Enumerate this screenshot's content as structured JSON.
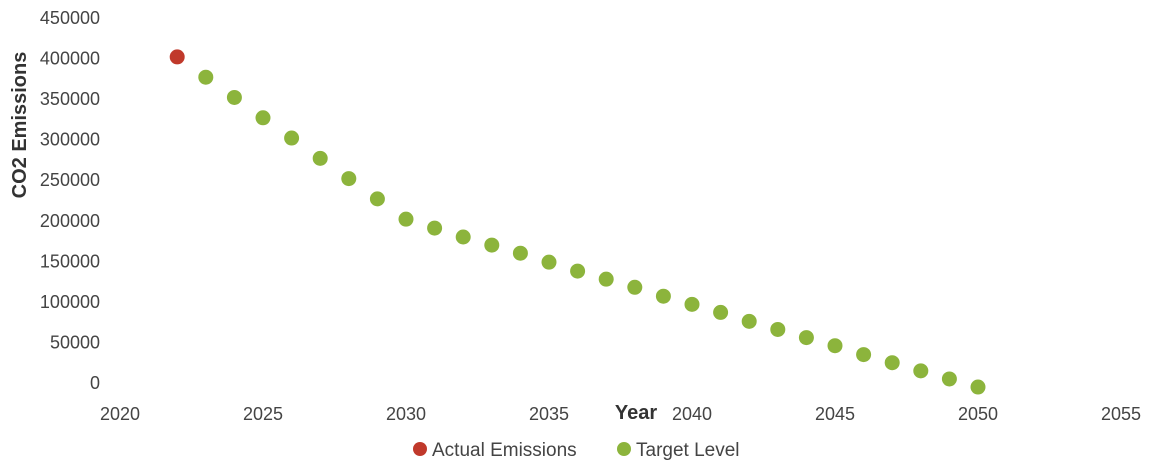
{
  "chart_data": {
    "type": "scatter",
    "title": "",
    "xlabel": "Year",
    "ylabel": "CO2 Emissions",
    "xlim": [
      2020,
      2055
    ],
    "ylim": [
      0,
      450000
    ],
    "x_ticks": [
      "2020",
      "2025",
      "2030",
      "2035",
      "2040",
      "2045",
      "2050",
      "2055"
    ],
    "y_ticks": [
      "0",
      "50000",
      "100000",
      "150000",
      "200000",
      "250000",
      "300000",
      "350000",
      "400000",
      "450000"
    ],
    "grid": false,
    "legend_position": "bottom",
    "series": [
      {
        "name": "Actual Emissions",
        "color": "#c0392b",
        "points": [
          {
            "x": 2022,
            "y": 402000
          }
        ]
      },
      {
        "name": "Target Level",
        "color": "#8cb43c",
        "points": [
          {
            "x": 2023,
            "y": 377000
          },
          {
            "x": 2024,
            "y": 352000
          },
          {
            "x": 2025,
            "y": 327000
          },
          {
            "x": 2026,
            "y": 302000
          },
          {
            "x": 2027,
            "y": 277000
          },
          {
            "x": 2028,
            "y": 252000
          },
          {
            "x": 2029,
            "y": 227000
          },
          {
            "x": 2030,
            "y": 202000
          },
          {
            "x": 2031,
            "y": 191000
          },
          {
            "x": 2032,
            "y": 180000
          },
          {
            "x": 2033,
            "y": 170000
          },
          {
            "x": 2034,
            "y": 160000
          },
          {
            "x": 2035,
            "y": 149000
          },
          {
            "x": 2036,
            "y": 138000
          },
          {
            "x": 2037,
            "y": 128000
          },
          {
            "x": 2038,
            "y": 118000
          },
          {
            "x": 2039,
            "y": 107000
          },
          {
            "x": 2040,
            "y": 97000
          },
          {
            "x": 2041,
            "y": 87000
          },
          {
            "x": 2042,
            "y": 76000
          },
          {
            "x": 2043,
            "y": 66000
          },
          {
            "x": 2044,
            "y": 56000
          },
          {
            "x": 2045,
            "y": 46000
          },
          {
            "x": 2046,
            "y": 35000
          },
          {
            "x": 2047,
            "y": 25000
          },
          {
            "x": 2048,
            "y": 15000
          },
          {
            "x": 2049,
            "y": 5000
          },
          {
            "x": 2050,
            "y": -5000
          }
        ]
      }
    ]
  }
}
